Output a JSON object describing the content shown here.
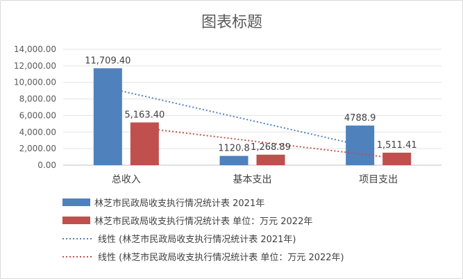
{
  "chart_data": {
    "type": "bar",
    "title": "图表标题",
    "categories": [
      "总收入",
      "基本支出",
      "项目支出"
    ],
    "series": [
      {
        "name": "林芝市民政局收支执行情况统计表 2021年",
        "values": [
          11709.4,
          1120.8,
          4788.9
        ],
        "labels": [
          "11,709.40",
          "1120.8",
          "4788.9"
        ],
        "color": "#4f81bd"
      },
      {
        "name": "林芝市民政局收支执行情况统计表 单位：万元 2022年",
        "values": [
          5163.4,
          1268.89,
          1511.41
        ],
        "labels": [
          "5,163.40",
          "1,268.89",
          "1,511.41"
        ],
        "color": "#c0504d"
      }
    ],
    "trendlines": [
      {
        "name": "线性 (林芝市民政局收支执行情况统计表 2021年)",
        "series_index": 0,
        "color": "#4f81bd",
        "style": "dotted"
      },
      {
        "name": "线性 (林芝市民政局收支执行情况统计表 单位：万元 2022年)",
        "series_index": 1,
        "color": "#c0504d",
        "style": "dotted"
      }
    ],
    "ylim": [
      0,
      14000
    ],
    "yticks": [
      "0.00",
      "2,000.00",
      "4,000.00",
      "6,000.00",
      "8,000.00",
      "10,000.00",
      "12,000.00",
      "14,000.00"
    ],
    "ytick_values": [
      0,
      2000,
      4000,
      6000,
      8000,
      10000,
      12000,
      14000
    ],
    "xlabel": "",
    "ylabel": "",
    "grid": true,
    "legend_position": "bottom"
  }
}
